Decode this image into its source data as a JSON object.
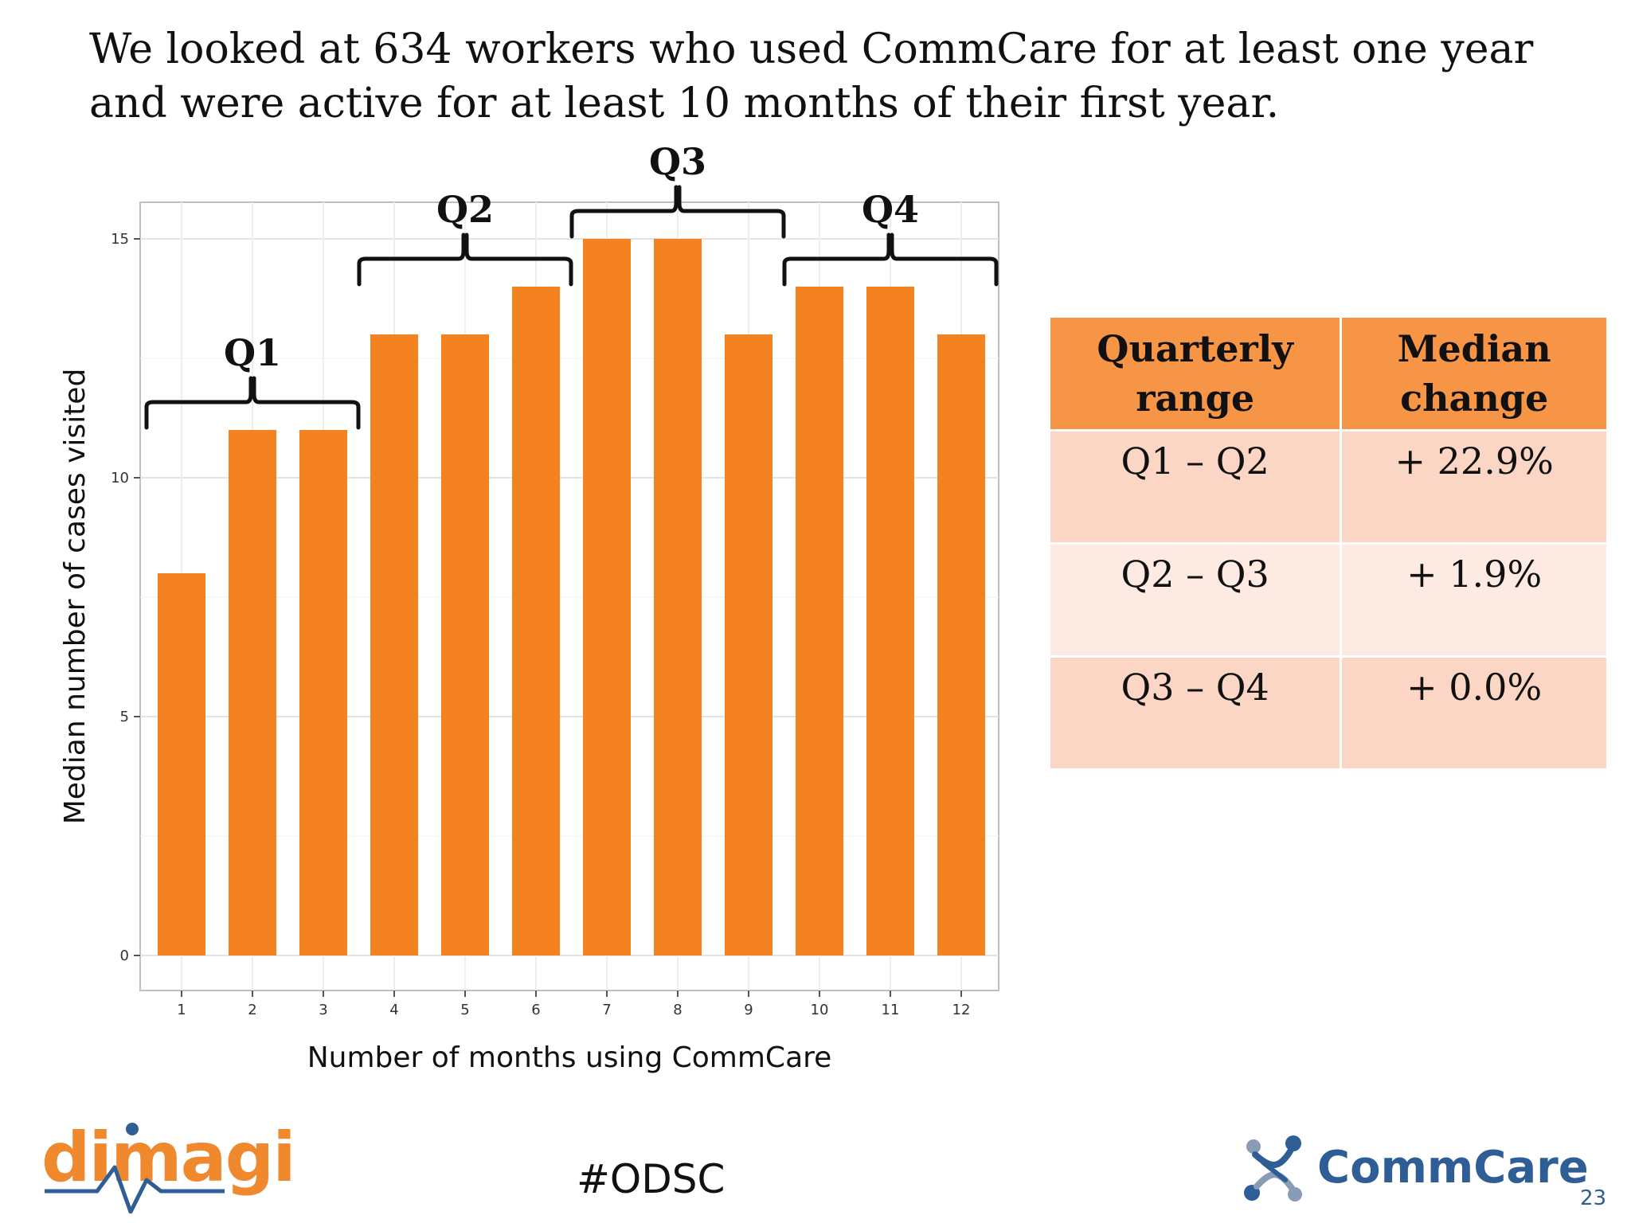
{
  "headline": "We looked at 634 workers who used CommCare for at least one year and were active for at least 10 months of their first year.",
  "chart_data": {
    "type": "bar",
    "title": "",
    "xlabel": "Number of months using CommCare",
    "ylabel": "Median number of cases visited",
    "categories": [
      "1",
      "2",
      "3",
      "4",
      "5",
      "6",
      "7",
      "8",
      "9",
      "10",
      "11",
      "12"
    ],
    "values": [
      8,
      11,
      11,
      13,
      13,
      14,
      15,
      15,
      13,
      14,
      14,
      13
    ],
    "ylim": [
      0,
      15.6
    ],
    "yticks": [
      0,
      5,
      10,
      15
    ],
    "grid": true,
    "bar_color": "#f58220",
    "quarter_groups": [
      {
        "label": "Q1",
        "from": "1",
        "to": "3"
      },
      {
        "label": "Q2",
        "from": "4",
        "to": "6"
      },
      {
        "label": "Q3",
        "from": "7",
        "to": "9"
      },
      {
        "label": "Q4",
        "from": "10",
        "to": "12"
      }
    ]
  },
  "table": {
    "headers": [
      "Quarterly range",
      "Median change"
    ],
    "rows": [
      {
        "range": "Q1 – Q2",
        "change": "+ 22.9%"
      },
      {
        "range": "Q2 – Q3",
        "change": "+ 1.9%"
      },
      {
        "range": "Q3 – Q4",
        "change": "+ 0.0%"
      }
    ]
  },
  "footer": {
    "left_logo": "dimagi",
    "hashtag": "#ODSC",
    "right_logo": "CommCare",
    "page_number": "23"
  },
  "colors": {
    "accent": "#f58220",
    "table_header": "#f79546",
    "table_row_odd": "#fbd6c4",
    "table_row_even": "#fdeae3",
    "brand_blue": "#2e5e95"
  },
  "icons": {
    "commcare_mark": "commcare-knot-icon",
    "dimagi_mark": "heartbeat-icon"
  }
}
